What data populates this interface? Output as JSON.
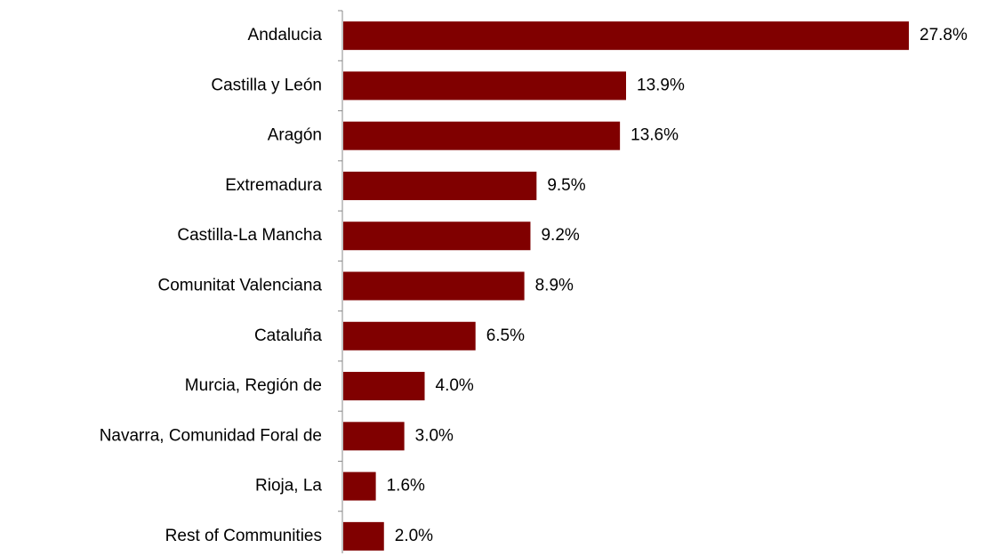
{
  "chart_data": {
    "type": "bar",
    "orientation": "horizontal",
    "categories": [
      "Andalucia",
      "Castilla y León",
      "Aragón",
      "Extremadura",
      "Castilla-La Mancha",
      "Comunitat Valenciana",
      "Cataluña",
      "Murcia, Región de",
      "Navarra, Comunidad Foral de",
      "Rioja, La",
      "Rest of Communities"
    ],
    "values": [
      27.8,
      13.9,
      13.6,
      9.5,
      9.2,
      8.9,
      6.5,
      4.0,
      3.0,
      1.6,
      2.0
    ],
    "value_labels": [
      "27.8%",
      "13.9%",
      "13.6%",
      "9.5%",
      "9.2%",
      "8.9%",
      "6.5%",
      "4.0%",
      "3.0%",
      "1.6%",
      "2.0%"
    ],
    "color": "#800000"
  }
}
